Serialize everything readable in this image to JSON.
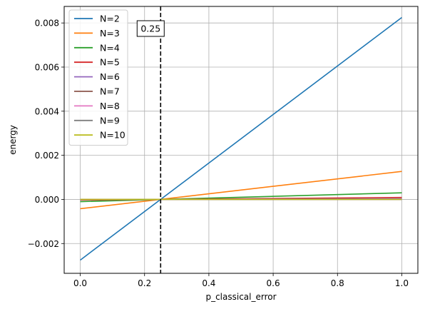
{
  "chart_data": {
    "type": "line",
    "title": "",
    "xlabel": "p_classical_error",
    "ylabel": "energy",
    "xlim": [
      -0.05,
      1.05
    ],
    "ylim": [
      -0.00335,
      0.00875
    ],
    "xticks": [
      0.0,
      0.2,
      0.4,
      0.6,
      0.8,
      1.0
    ],
    "xtick_labels": [
      "0.0",
      "0.2",
      "0.4",
      "0.6",
      "0.8",
      "1.0"
    ],
    "yticks": [
      -0.002,
      0.0,
      0.002,
      0.004,
      0.006,
      0.008
    ],
    "ytick_labels": [
      "−0.002",
      "0.000",
      "0.002",
      "0.004",
      "0.006",
      "0.008"
    ],
    "grid": true,
    "legend_position": "top-left",
    "x": [
      0.0,
      1.0
    ],
    "series": [
      {
        "name": "N=2",
        "color": "#1f77b4",
        "values": [
          -0.00275,
          0.00825
        ]
      },
      {
        "name": "N=3",
        "color": "#ff7f0e",
        "values": [
          -0.00042,
          0.00127
        ]
      },
      {
        "name": "N=4",
        "color": "#2ca02c",
        "values": [
          -0.0001,
          0.0003
        ]
      },
      {
        "name": "N=5",
        "color": "#d62728",
        "values": [
          -3e-05,
          9e-05
        ]
      },
      {
        "name": "N=6",
        "color": "#9467bd",
        "values": [
          -1e-05,
          3e-05
        ]
      },
      {
        "name": "N=7",
        "color": "#8c564b",
        "values": [
          0.0,
          1e-05
        ]
      },
      {
        "name": "N=8",
        "color": "#e377c2",
        "values": [
          0.0,
          0.0
        ]
      },
      {
        "name": "N=9",
        "color": "#7f7f7f",
        "values": [
          0.0,
          0.0
        ]
      },
      {
        "name": "N=10",
        "color": "#bcbd22",
        "values": [
          0.0,
          0.0
        ]
      }
    ],
    "annotations": [
      {
        "type": "vline",
        "x": 0.25,
        "style": "dashed",
        "color": "#000000",
        "label": "0.25"
      }
    ]
  }
}
